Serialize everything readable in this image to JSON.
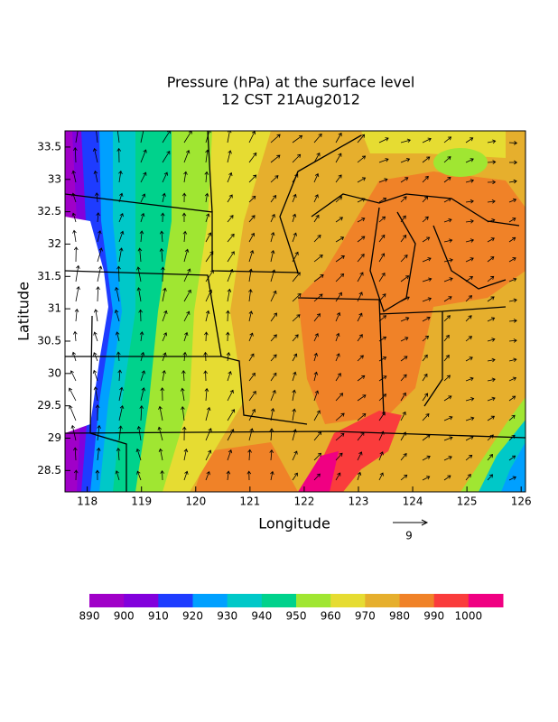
{
  "title": [
    "Pressure (hPa) at the surface level",
    "12 CST 21Aug2012"
  ],
  "map": {
    "xlabel": "Longitude",
    "ylabel": "Latitude",
    "xlim": [
      117.59,
      126.08
    ],
    "ylim": [
      28.17,
      33.75
    ],
    "xticks": [
      118,
      119,
      120,
      121,
      122,
      123,
      124,
      125,
      126
    ],
    "yticks": [
      28.5,
      29,
      29.5,
      30,
      30.5,
      31,
      31.5,
      32,
      32.5,
      33,
      33.5
    ]
  },
  "vector_reference": {
    "label": "9"
  },
  "colorbar": {
    "levels": [
      890,
      900,
      910,
      920,
      930,
      940,
      950,
      960,
      970,
      980,
      990,
      1000
    ],
    "colors": [
      "#a000c8",
      "#8200dc",
      "#1e3cff",
      "#00a0ff",
      "#00c8c8",
      "#00d28c",
      "#a0e632",
      "#e6dc32",
      "#e6af2d",
      "#f08228",
      "#fa3c3c",
      "#f00082"
    ]
  }
}
